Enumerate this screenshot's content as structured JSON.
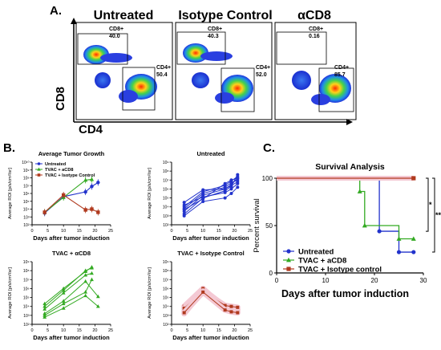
{
  "panel_labels": {
    "a": "A.",
    "b": "B.",
    "c": "C."
  },
  "flow": {
    "x_axis_label": "CD4",
    "y_axis_label": "CD8",
    "plots": [
      {
        "title": "Untreated",
        "cd8_label": "CD8+",
        "cd8_value": "40.0",
        "cd4_label": "CD4+",
        "cd4_value": "50.4"
      },
      {
        "title": "Isotype  Control",
        "cd8_label": "CD8+",
        "cd8_value": "40.3",
        "cd4_label": "CD4+",
        "cd4_value": "52.0"
      },
      {
        "title": "αCD8",
        "cd8_label": "CD8+",
        "cd8_value": "0.16",
        "cd4_label": "CD4+",
        "cd4_value": "85.7"
      }
    ]
  },
  "growth_panels": [
    {
      "title": "Average Tumor  Growth",
      "xlabel": "Days after tumor induction",
      "ylabel": "Average ROI [p/s/cm²/sr]",
      "xticks": [
        "0",
        "5",
        "10",
        "15",
        "20",
        "25"
      ],
      "yticks": [
        "10²",
        "10³",
        "10⁴",
        "10⁵",
        "10⁶",
        "10⁷",
        "10⁸",
        "10⁹",
        "10¹⁰"
      ],
      "legend": [
        "Untreated",
        "TVAC + aCD8",
        "TVAC + Isotype Control"
      ]
    },
    {
      "title": "Untreated",
      "xlabel": "Days after tumor induction",
      "ylabel": "Average ROI [p/s/cm²/sr]",
      "xticks": [
        "0",
        "5",
        "10",
        "15",
        "20",
        "25"
      ],
      "yticks": [
        "10²",
        "10³",
        "10⁴",
        "10⁵",
        "10⁶",
        "10⁷",
        "10⁸",
        "10⁹"
      ]
    },
    {
      "title": "TVAC + αCD8",
      "xlabel": "Days after tumor induction",
      "ylabel": "Average ROI [p/s/cm²/sr]",
      "xticks": [
        "0",
        "5",
        "10",
        "15",
        "20",
        "25"
      ],
      "yticks": [
        "10²",
        "10³",
        "10⁴",
        "10⁵",
        "10⁶",
        "10⁷",
        "10⁸",
        "10⁹"
      ]
    },
    {
      "title": "TVAC + Isotype  Control",
      "xlabel": "Days after tumor induction",
      "ylabel": "Average ROI [p/s/cm²/sr]",
      "xticks": [
        "0",
        "5",
        "10",
        "15",
        "20",
        "25"
      ],
      "yticks": [
        "10²",
        "10³",
        "10⁴",
        "10⁵",
        "10⁶",
        "10⁷",
        "10⁸",
        "10⁹"
      ]
    }
  ],
  "survival": {
    "title": "Survival Analysis",
    "ylabel": "Percent survival",
    "xlabel": "Days after tumor induction",
    "xticks": [
      "0",
      "10",
      "20",
      "30"
    ],
    "yticks": [
      "0",
      "50",
      "100"
    ],
    "significance": [
      "*",
      "**"
    ],
    "legend": [
      "Untreated",
      "TVAC + aCD8",
      "TVAC + Isotype control"
    ]
  },
  "colors": {
    "untreated": "#2233cc",
    "acd8": "#33aa22",
    "isotype": "#b03a1e",
    "band": "#f4c9d4"
  },
  "chart_data": [
    {
      "type": "line",
      "title": "Average Tumor  Growth",
      "xlabel": "Days after tumor induction",
      "ylabel": "Average ROI [p/s/cm²/sr]",
      "log_y": true,
      "xlim": [
        0,
        25
      ],
      "ylim_exp": [
        2,
        10
      ],
      "series": [
        {
          "name": "Untreated",
          "x": [
            4,
            10,
            17,
            19,
            21
          ],
          "log10_y": [
            3.5,
            5.6,
            6.2,
            6.9,
            7.4
          ]
        },
        {
          "name": "TVAC + aCD8",
          "x": [
            4,
            10,
            17,
            19
          ],
          "log10_y": [
            3.6,
            5.5,
            7.7,
            7.8
          ]
        },
        {
          "name": "TVAC + Isotype Control",
          "x": [
            4,
            10,
            17,
            19,
            21
          ],
          "log10_y": [
            3.6,
            5.8,
            3.9,
            4.0,
            3.6
          ]
        }
      ]
    },
    {
      "type": "line",
      "title": "Untreated",
      "log_y": true,
      "xlim": [
        0,
        25
      ],
      "ylim_exp": [
        2,
        9
      ],
      "x": [
        4,
        10,
        17,
        19,
        21
      ],
      "series": [
        {
          "values_log10": [
            3.2,
            5.0,
            5.8,
            6.3,
            7.6
          ]
        },
        {
          "values_log10": [
            3.5,
            5.3,
            6.0,
            6.5,
            7.2
          ]
        },
        {
          "values_log10": [
            3.8,
            5.5,
            6.2,
            6.7,
            7.0
          ]
        },
        {
          "values_log10": [
            4.0,
            5.7,
            6.4,
            6.9,
            7.4
          ]
        },
        {
          "values_log10": [
            4.2,
            5.1,
            5.6,
            6.0,
            6.6
          ]
        },
        {
          "values_log10": [
            3.0,
            4.6,
            5.0,
            5.5,
            6.2
          ]
        },
        {
          "values_log10": [
            3.7,
            4.9,
            6.6,
            7.0,
            7.2
          ]
        },
        {
          "values_log10": [
            4.5,
            5.9,
            6.0,
            6.4,
            6.8
          ]
        }
      ]
    },
    {
      "type": "line",
      "title": "TVAC + αCD8",
      "log_y": true,
      "xlim": [
        0,
        25
      ],
      "ylim_exp": [
        2,
        9
      ],
      "series": [
        {
          "x": [
            4,
            10,
            17,
            19
          ],
          "values_log10": [
            4.0,
            5.8,
            8.0,
            8.3
          ]
        },
        {
          "x": [
            4,
            10,
            17,
            19
          ],
          "values_log10": [
            4.3,
            6.0,
            7.9,
            8.4
          ]
        },
        {
          "x": [
            4,
            10,
            17,
            19
          ],
          "values_log10": [
            3.7,
            5.5,
            7.5,
            7.7
          ]
        },
        {
          "x": [
            4,
            10,
            17,
            19
          ],
          "values_log10": [
            3.0,
            4.3,
            5.6,
            7.0
          ]
        },
        {
          "x": [
            4,
            10,
            17,
            21
          ],
          "values_log10": [
            3.2,
            4.6,
            6.8,
            5.1
          ]
        },
        {
          "x": [
            4,
            10,
            17,
            21
          ],
          "values_log10": [
            2.8,
            3.8,
            5.2,
            4.0
          ]
        }
      ]
    },
    {
      "type": "line",
      "title": "TVAC + Isotype  Control",
      "log_y": true,
      "xlim": [
        0,
        25
      ],
      "ylim_exp": [
        2,
        9
      ],
      "x": [
        4,
        10,
        17,
        19,
        21
      ],
      "series": [
        {
          "values_log10": [
            3.5,
            5.9,
            4.0,
            3.8,
            3.6
          ]
        },
        {
          "values_log10": [
            3.2,
            5.8,
            3.9,
            3.5,
            3.7
          ]
        },
        {
          "values_log10": [
            4.0,
            6.0,
            3.7,
            3.6,
            3.4
          ]
        },
        {
          "values_log10": [
            3.8,
            5.7,
            4.1,
            4.0,
            3.9
          ]
        },
        {
          "values_log10": [
            3.3,
            5.6,
            3.6,
            3.4,
            3.3
          ]
        }
      ]
    },
    {
      "type": "line",
      "title": "Survival Analysis",
      "xlabel": "Days after tumor induction",
      "ylabel": "Percent survival",
      "xlim": [
        0,
        30
      ],
      "ylim": [
        0,
        100
      ],
      "step": true,
      "series": [
        {
          "name": "Untreated",
          "x": [
            0,
            21,
            25,
            28
          ],
          "y": [
            100,
            44,
            22,
            22
          ]
        },
        {
          "name": "TVAC + aCD8",
          "x": [
            0,
            17,
            18,
            25,
            28
          ],
          "y": [
            100,
            86,
            50,
            36,
            36
          ]
        },
        {
          "name": "TVAC + Isotype control",
          "x": [
            0,
            28
          ],
          "y": [
            100,
            100
          ]
        }
      ]
    }
  ]
}
